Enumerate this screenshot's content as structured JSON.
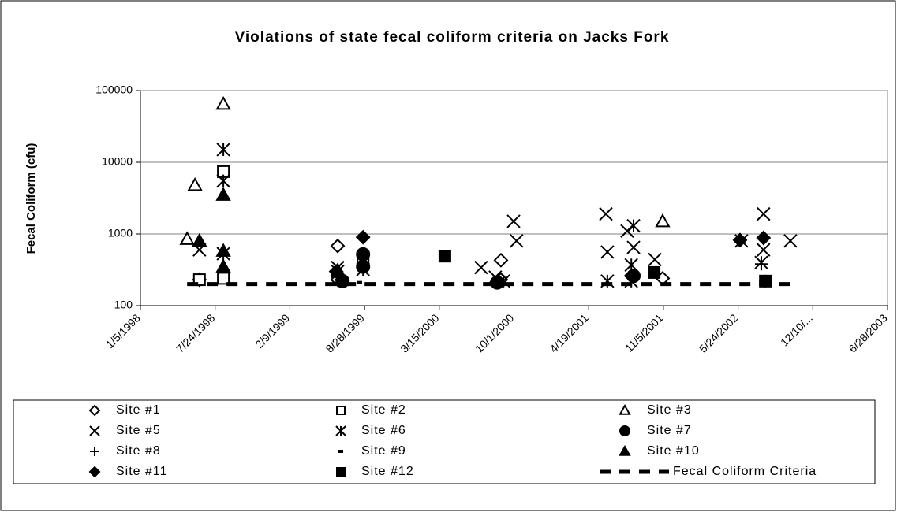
{
  "chart_data": {
    "type": "scatter",
    "title": "Violations of state fecal coliform criteria on Jacks Fork",
    "y_label": "Fecal Coliform (cfu)",
    "log_y": true,
    "grid": true,
    "ylim": [
      100,
      100000
    ],
    "yticks": [
      100,
      1000,
      10000,
      100000
    ],
    "xlim": [
      "1998-01-05",
      "2003-06-28"
    ],
    "xticks": [
      {
        "value": "1998-01-05",
        "label": "1/5/1998"
      },
      {
        "value": "1998-07-24",
        "label": "7/24/1998"
      },
      {
        "value": "1999-02-09",
        "label": "2/9/1999"
      },
      {
        "value": "1999-08-28",
        "label": "8/28/1999"
      },
      {
        "value": "2000-03-15",
        "label": "3/15/2000"
      },
      {
        "value": "2000-10-01",
        "label": "10/1/2000"
      },
      {
        "value": "2001-04-19",
        "label": "4/19/2001"
      },
      {
        "value": "2001-11-05",
        "label": "11/5/2001"
      },
      {
        "value": "2002-05-24",
        "label": "5/24/2002"
      },
      {
        "value": "2002-12-10",
        "label": "12/10/..."
      },
      {
        "value": "2003-06-28",
        "label": "6/28/2003"
      }
    ],
    "series": [
      {
        "name": "Site #1",
        "color": "#000000",
        "marker": "diamond",
        "filled": false,
        "x": [
          "1998-06-12",
          "1999-06-17",
          "1999-06-17",
          "2000-08-27",
          "2000-08-27",
          "2001-11-03"
        ],
        "values": [
          230,
          680,
          230,
          430,
          230,
          240
        ]
      },
      {
        "name": "Site #2",
        "color": "#000000",
        "marker": "square",
        "filled": false,
        "x": [
          "1998-06-12",
          "1998-08-15",
          "1998-08-15",
          "1999-08-24"
        ],
        "values": [
          230,
          240,
          7400,
          400
        ]
      },
      {
        "name": "Site #3",
        "color": "#000000",
        "marker": "triangle",
        "filled": false,
        "x": [
          "1998-05-10",
          "1998-05-31",
          "1998-08-15",
          "2001-11-03"
        ],
        "values": [
          850,
          4800,
          65000,
          1500
        ]
      },
      {
        "name": "Site #5",
        "color": "#000000",
        "marker": "x",
        "filled": false,
        "x": [
          "1998-06-12",
          "1999-06-17",
          "2000-07-05",
          "2000-08-12",
          "2000-09-30",
          "2000-10-08",
          "2001-06-04",
          "2001-06-08",
          "2001-07-31",
          "2001-08-17",
          "2001-10-13",
          "2002-06-02",
          "2002-07-31",
          "2002-07-31",
          "2002-10-11"
        ],
        "values": [
          600,
          340,
          340,
          250,
          1500,
          800,
          1900,
          560,
          1100,
          650,
          440,
          800,
          1900,
          600,
          800
        ]
      },
      {
        "name": "Site #6",
        "color": "#000000",
        "marker": "asterisk",
        "filled": false,
        "x": [
          "1998-08-15",
          "1998-08-15",
          "1998-08-15",
          "1999-06-17",
          "1999-08-24",
          "2000-09-03",
          "2001-08-17",
          "2001-08-11",
          "2001-06-08",
          "2002-07-25",
          "2001-08-11"
        ],
        "values": [
          15000,
          5500,
          530,
          300,
          320,
          220,
          1300,
          220,
          220,
          400,
          370
        ]
      },
      {
        "name": "Site #7",
        "color": "#000000",
        "marker": "circle",
        "filled": true,
        "x": [
          "1999-06-30",
          "1999-08-24",
          "1999-08-24",
          "2000-08-17",
          "2001-08-17"
        ],
        "values": [
          220,
          520,
          350,
          210,
          260
        ]
      },
      {
        "name": "Site #8",
        "color": "#000000",
        "marker": "plus",
        "filled": false,
        "x": [
          "1999-06-25",
          "2002-07-25",
          "2002-08-05"
        ],
        "values": [
          230,
          380,
          220
        ]
      },
      {
        "name": "Site #9",
        "color": "#000000",
        "marker": "dash",
        "filled": true,
        "x": [
          "1999-08-15"
        ],
        "values": [
          210
        ]
      },
      {
        "name": "Site #10",
        "color": "#000000",
        "marker": "triangle",
        "filled": true,
        "x": [
          "1998-06-12",
          "1998-08-15",
          "1998-08-15",
          "1998-08-15",
          "1999-06-17"
        ],
        "values": [
          800,
          3500,
          580,
          350,
          310
        ]
      },
      {
        "name": "Site #11",
        "color": "#000000",
        "marker": "diamond",
        "filled": true,
        "x": [
          "1999-06-13",
          "1999-08-24",
          "2002-05-29",
          "2002-07-31",
          "2001-08-11"
        ],
        "values": [
          300,
          900,
          820,
          880,
          260
        ]
      },
      {
        "name": "Site #12",
        "color": "#000000",
        "marker": "square",
        "filled": true,
        "x": [
          "2000-03-30",
          "2001-10-11",
          "2002-08-05"
        ],
        "values": [
          490,
          290,
          220
        ]
      },
      {
        "name": "Fecal Coliform Criteria",
        "color": "#000000",
        "marker": "dashed-line",
        "filled": true,
        "x": [
          "1998-05-10",
          "2002-10-11"
        ],
        "values": [
          200,
          200
        ]
      }
    ]
  }
}
